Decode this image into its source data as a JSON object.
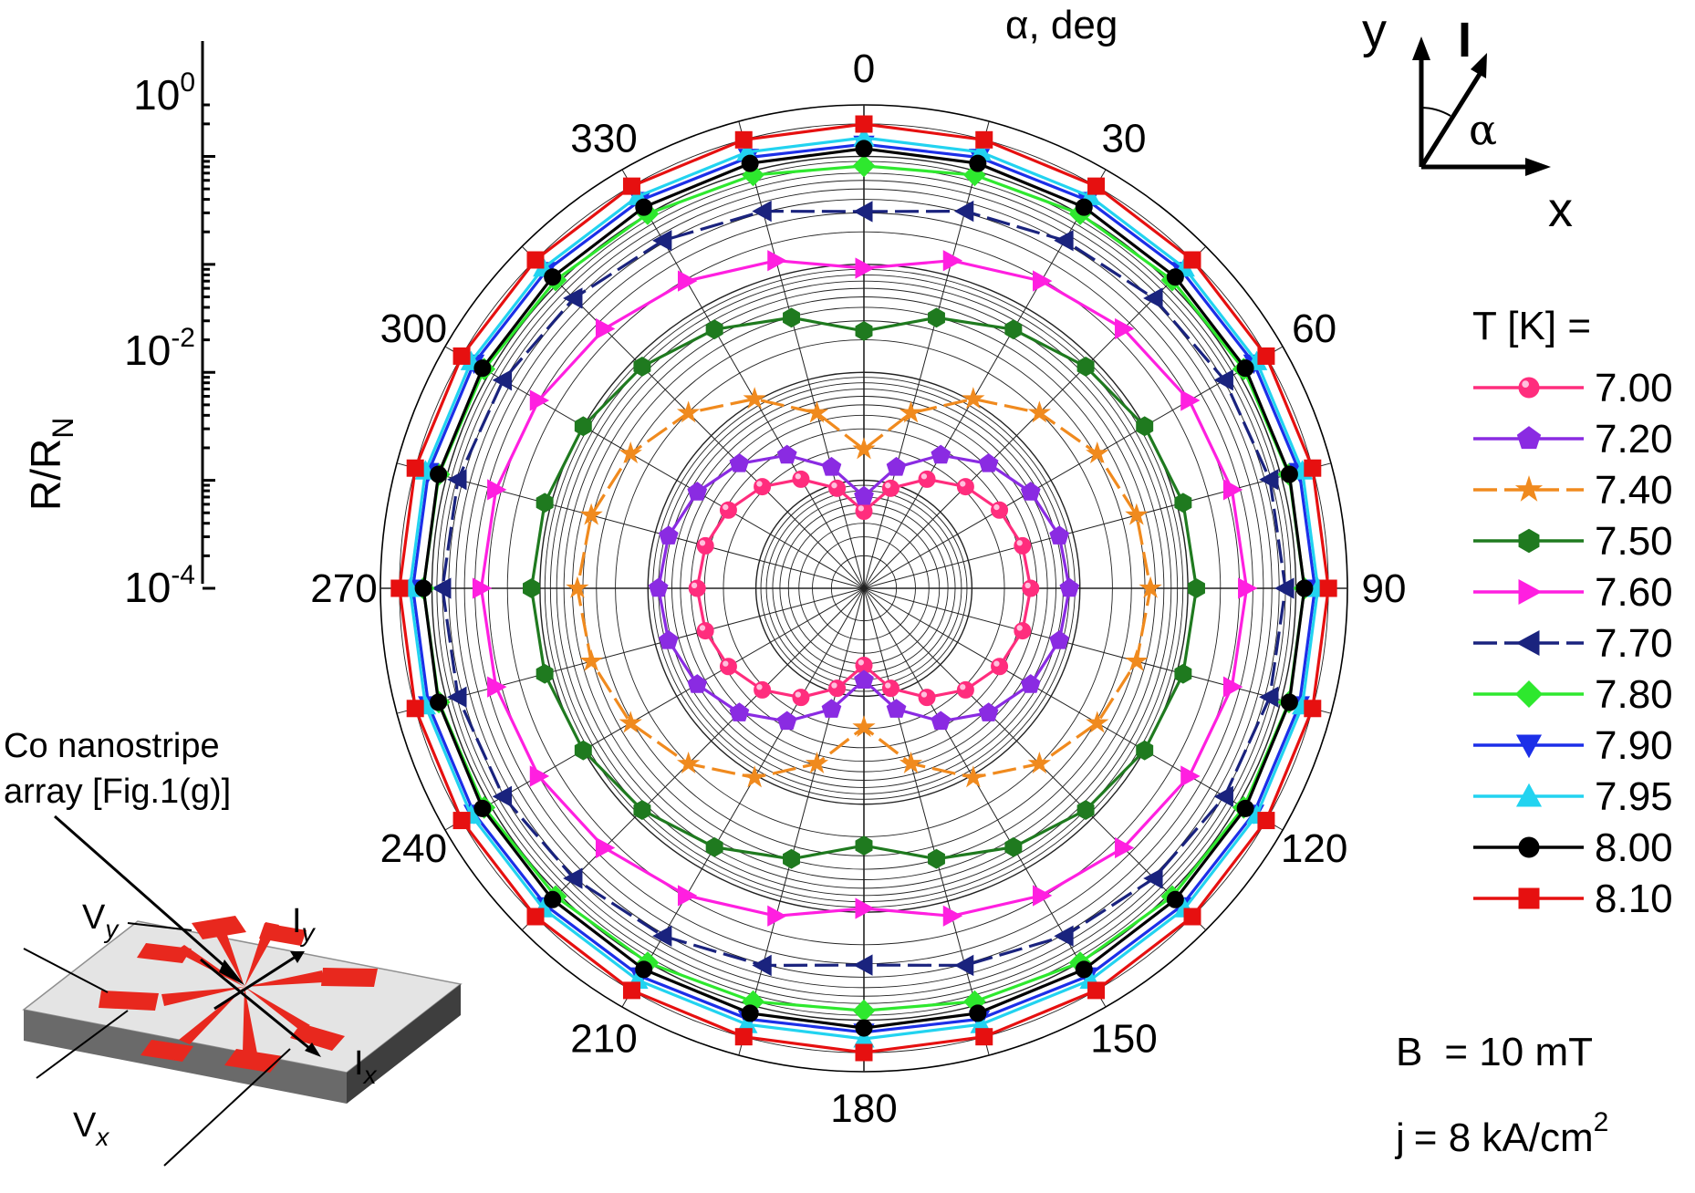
{
  "chart_data": {
    "type": "polar-scatter",
    "angular_axis": {
      "title": "α, deg",
      "tick_labels": [
        "0",
        "30",
        "60",
        "90",
        "120",
        "150",
        "180",
        "210",
        "240",
        "270",
        "300",
        "330"
      ],
      "step_deg": 15
    },
    "radial_axis": {
      "label": "R/R",
      "label_subscript": "N",
      "scale": "log",
      "range": [
        0.0001,
        3
      ],
      "tick_labels": [
        {
          "value": 1,
          "base": "10",
          "exp": "0"
        },
        {
          "value": 0.01,
          "base": "10",
          "exp": "-2"
        },
        {
          "value": 0.0001,
          "base": "10",
          "exp": "-4"
        }
      ]
    },
    "legend_title": "T [K] =",
    "series": [
      {
        "name": "7.00",
        "color": "#ff2d7d",
        "marker": "sphere",
        "dash": false,
        "r_ref": 0.0035,
        "sigma": 45,
        "floor": 5e-05
      },
      {
        "name": "7.20",
        "color": "#8a2be2",
        "marker": "pentagon",
        "dash": false,
        "r_ref": 0.008,
        "sigma": 40,
        "floor": 8e-05
      },
      {
        "name": "7.40",
        "color": "#f08a1e",
        "marker": "star",
        "dash": true,
        "r_ref": 0.045,
        "sigma": 35,
        "floor": 0.0003
      },
      {
        "name": "7.50",
        "color": "#1f7a1f",
        "marker": "hexagon",
        "dash": false,
        "r_ref": 0.12,
        "sigma": 50,
        "floor": 0.0005
      },
      {
        "name": "7.60",
        "color": "#ff1fe0",
        "marker": "triangle-right",
        "dash": false,
        "r_ref": 0.35,
        "sigma": 55,
        "floor": 0.0008
      },
      {
        "name": "7.70",
        "color": "#1a237e",
        "marker": "triangle-left",
        "dash": true,
        "r_ref": 0.8,
        "sigma": 65,
        "floor": 0.003
      },
      {
        "name": "7.80",
        "color": "#2ee82e",
        "marker": "diamond",
        "dash": false,
        "r_ref": 1.2,
        "sigma": 100,
        "floor": 0.05
      },
      {
        "name": "7.90",
        "color": "#1c2fe8",
        "marker": "triangle-down",
        "dash": false,
        "r_ref": 1.5,
        "sigma": 150,
        "floor": 0.25
      },
      {
        "name": "7.95",
        "color": "#22d3f0",
        "marker": "triangle-up",
        "dash": false,
        "r_ref": 1.6,
        "sigma": 200,
        "floor": 0.45
      },
      {
        "name": "8.00",
        "color": "#000000",
        "marker": "circle",
        "dash": false,
        "r_ref": 1.2,
        "sigma": 250,
        "floor": 0.9
      },
      {
        "name": "8.10",
        "color": "#e61010",
        "marker": "square",
        "dash": false,
        "r_ref": 2.0,
        "sigma": 350,
        "floor": 1.8
      }
    ],
    "conditions": [
      {
        "lead": "B",
        "text": "= 10 mT",
        "sup": ""
      },
      {
        "lead": "j",
        "text": "= 8 kA/cm",
        "sup": "2"
      }
    ]
  },
  "axes_inset": {
    "y": "y",
    "x": "x",
    "current": "I",
    "angle": "α"
  },
  "sample_inset": {
    "caption_line1": "Co nanostripe",
    "caption_line2": "array [Fig.1(g)]",
    "vy_base": "V",
    "vy_sub": "y",
    "iy_base": "I",
    "iy_sub": "y",
    "ix_base": "I",
    "ix_sub": "x",
    "vx_base": "V",
    "vx_sub": "x"
  }
}
